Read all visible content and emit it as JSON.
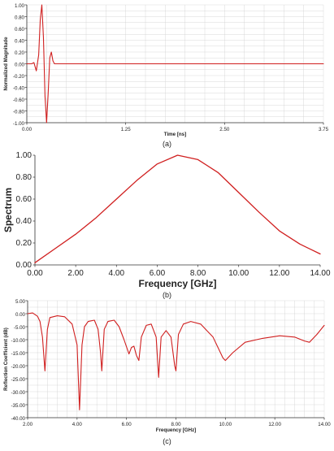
{
  "colors": {
    "curve": "#d01f1f",
    "axis": "#333333",
    "grid": "#cfcfcf",
    "plot_bg": "#ffffff"
  },
  "captions": [
    "(a)",
    "(b)",
    "(c)"
  ],
  "chart_data": [
    {
      "type": "line",
      "title": "",
      "xlabel": "Time [ns]",
      "ylabel": "Normalized Magnitude",
      "xlim": [
        0,
        3.75
      ],
      "ylim": [
        -1.0,
        1.0
      ],
      "x_ticks": [
        "0.00",
        "1.25",
        "2.50",
        "3.75"
      ],
      "y_ticks": [
        "1.00",
        "0.80",
        "0.60",
        "0.40",
        "0.20",
        "0.00",
        "-0.20",
        "-0.40",
        "-0.60",
        "-0.80",
        "-1.00"
      ],
      "grid": true,
      "series": [
        {
          "x": [
            0,
            0.03,
            0.06,
            0.09,
            0.12,
            0.15,
            0.17,
            0.19,
            0.21,
            0.23,
            0.25,
            0.27,
            0.29,
            0.31,
            0.33,
            0.35,
            0.4,
            0.6,
            1.0,
            2.0,
            3.0,
            3.75
          ],
          "y": [
            0,
            0,
            0,
            0.02,
            -0.12,
            0.15,
            0.75,
            1.0,
            0.45,
            -0.55,
            -1.0,
            -0.5,
            0.1,
            0.2,
            0.05,
            0.0,
            0.0,
            0.0,
            0.0,
            0.0,
            0.0,
            0.0
          ]
        }
      ]
    },
    {
      "type": "line",
      "title": "",
      "xlabel": "Frequency [GHz]",
      "ylabel": "Spectrum",
      "xlim": [
        0,
        14
      ],
      "ylim": [
        0,
        1.0
      ],
      "x_ticks": [
        "0.00",
        "2.00",
        "4.00",
        "6.00",
        "8.00",
        "10.00",
        "12.00",
        "14.00"
      ],
      "y_ticks": [
        "1.00",
        "0.80",
        "0.60",
        "0.40",
        "0.20",
        "0.00"
      ],
      "grid": false,
      "series": [
        {
          "x": [
            0,
            1,
            2,
            3,
            4,
            5,
            6,
            7,
            8,
            9,
            10,
            11,
            12,
            13,
            14
          ],
          "y": [
            0.02,
            0.15,
            0.28,
            0.43,
            0.6,
            0.77,
            0.92,
            1.0,
            0.96,
            0.84,
            0.66,
            0.48,
            0.31,
            0.19,
            0.1
          ]
        }
      ]
    },
    {
      "type": "line",
      "title": "",
      "xlabel": "Frequency [GHz]",
      "ylabel": "Reflection Coefficient (dB)",
      "xlim": [
        2.0,
        14.0
      ],
      "ylim": [
        -40.0,
        5.0
      ],
      "x_ticks": [
        "2.00",
        "4.00",
        "6.00",
        "8.00",
        "10.00",
        "12.00",
        "14.00"
      ],
      "y_ticks": [
        "5.00",
        "0.00",
        "-5.00",
        "-10.00",
        "-15.00",
        "-20.00",
        "-25.00",
        "-30.00",
        "-35.00",
        "-40.00"
      ],
      "grid": true,
      "series": [
        {
          "x": [
            2.0,
            2.2,
            2.4,
            2.5,
            2.6,
            2.7,
            2.8,
            2.9,
            3.2,
            3.5,
            3.8,
            4.0,
            4.1,
            4.2,
            4.3,
            4.45,
            4.7,
            4.85,
            4.95,
            5.0,
            5.1,
            5.25,
            5.5,
            5.7,
            5.9,
            6.1,
            6.2,
            6.3,
            6.4,
            6.5,
            6.6,
            6.8,
            7.0,
            7.2,
            7.3,
            7.4,
            7.6,
            7.8,
            7.95,
            8.0,
            8.1,
            8.3,
            8.6,
            9.0,
            9.5,
            9.9,
            10.0,
            10.3,
            10.8,
            11.5,
            12.2,
            12.8,
            13.2,
            13.4,
            13.7,
            14.0
          ],
          "y": [
            0.0,
            0.3,
            -1.0,
            -3.0,
            -9.0,
            -22.0,
            -6.0,
            -1.5,
            -0.8,
            -1.2,
            -4.0,
            -12.0,
            -37.0,
            -12.0,
            -5.0,
            -3.0,
            -2.5,
            -6.0,
            -15.0,
            -22.0,
            -6.0,
            -3.0,
            -2.5,
            -5.0,
            -10.0,
            -15.5,
            -13.0,
            -12.5,
            -16.0,
            -18.0,
            -9.0,
            -4.5,
            -4.0,
            -9.0,
            -24.5,
            -9.0,
            -6.5,
            -9.0,
            -20.0,
            -22.0,
            -8.0,
            -4.0,
            -3.0,
            -4.0,
            -9.0,
            -17.0,
            -18.0,
            -15.0,
            -11.0,
            -9.5,
            -8.5,
            -9.0,
            -10.5,
            -11.0,
            -8.0,
            -4.5
          ]
        }
      ]
    }
  ]
}
